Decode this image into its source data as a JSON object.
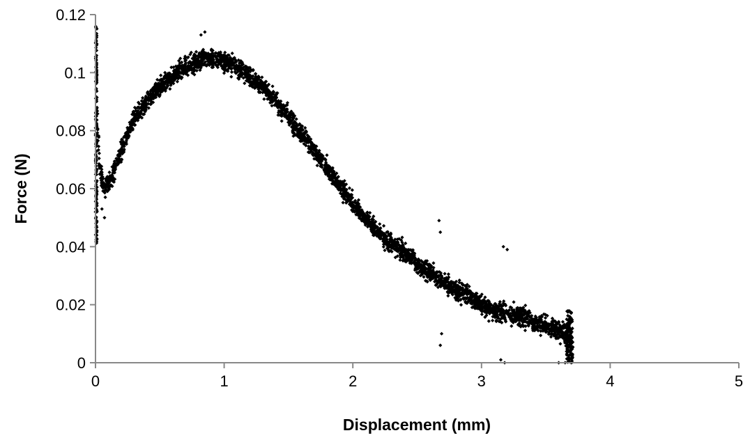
{
  "chart_data": {
    "type": "scatter",
    "title": "",
    "xlabel": "Displacement (mm)",
    "ylabel": "Force (N)",
    "xlim": [
      0,
      5
    ],
    "ylim": [
      0,
      0.12
    ],
    "x_ticks": [
      "0",
      "1",
      "2",
      "3",
      "4",
      "5"
    ],
    "y_ticks": [
      "0",
      "0.02",
      "0.04",
      "0.06",
      "0.08",
      "0.1",
      "0.12"
    ],
    "grid": false,
    "legend": "none",
    "marker": "diamond",
    "marker_color": "#000000",
    "series": [
      {
        "points": [
          [
            0.0,
            0.116
          ],
          [
            0.0,
            0.041
          ],
          [
            0.005,
            0.105
          ],
          [
            0.01,
            0.09
          ],
          [
            0.02,
            0.078
          ],
          [
            0.03,
            0.068
          ],
          [
            0.05,
            0.063
          ],
          [
            0.08,
            0.06
          ],
          [
            0.1,
            0.062
          ],
          [
            0.15,
            0.067
          ],
          [
            0.2,
            0.073
          ],
          [
            0.25,
            0.079
          ],
          [
            0.3,
            0.084
          ],
          [
            0.4,
            0.09
          ],
          [
            0.5,
            0.095
          ],
          [
            0.6,
            0.099
          ],
          [
            0.7,
            0.102
          ],
          [
            0.8,
            0.104
          ],
          [
            0.9,
            0.105
          ],
          [
            1.0,
            0.104
          ],
          [
            1.1,
            0.102
          ],
          [
            1.2,
            0.099
          ],
          [
            1.3,
            0.095
          ],
          [
            1.4,
            0.09
          ],
          [
            1.5,
            0.085
          ],
          [
            1.6,
            0.079
          ],
          [
            1.7,
            0.073
          ],
          [
            1.8,
            0.067
          ],
          [
            1.9,
            0.061
          ],
          [
            2.0,
            0.055
          ],
          [
            2.1,
            0.05
          ],
          [
            2.2,
            0.045
          ],
          [
            2.3,
            0.041
          ],
          [
            2.4,
            0.038
          ],
          [
            2.5,
            0.034
          ],
          [
            2.6,
            0.031
          ],
          [
            2.7,
            0.028
          ],
          [
            2.8,
            0.025
          ],
          [
            2.9,
            0.023
          ],
          [
            3.0,
            0.02
          ],
          [
            3.1,
            0.018
          ],
          [
            3.2,
            0.017
          ],
          [
            3.3,
            0.016
          ],
          [
            3.4,
            0.014
          ],
          [
            3.5,
            0.013
          ],
          [
            3.6,
            0.011
          ],
          [
            3.7,
            0.009
          ]
        ],
        "spread": 0.006,
        "outliers": [
          [
            0.0,
            0.052
          ],
          [
            0.07,
            0.05
          ],
          [
            0.05,
            0.053
          ],
          [
            2.67,
            0.049
          ],
          [
            2.68,
            0.045
          ],
          [
            2.68,
            0.006
          ],
          [
            2.69,
            0.01
          ],
          [
            3.17,
            0.04
          ],
          [
            3.2,
            0.039
          ],
          [
            3.18,
            0.0
          ],
          [
            3.15,
            0.001
          ],
          [
            3.6,
            0.0
          ],
          [
            3.65,
            0.0
          ],
          [
            0.85,
            0.114
          ],
          [
            0.82,
            0.113
          ]
        ]
      }
    ]
  }
}
